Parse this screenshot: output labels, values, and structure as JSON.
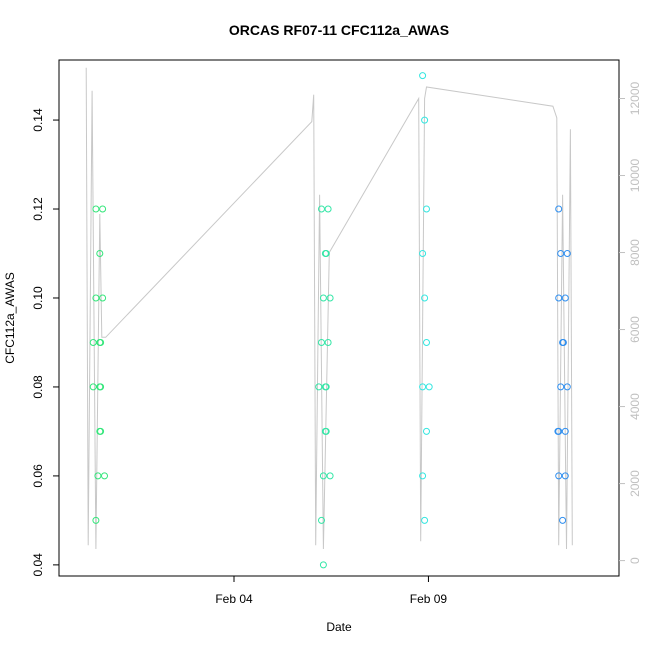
{
  "chart_data": {
    "type": "scatter",
    "title": "ORCAS RF07-11 CFC112a_AWAS",
    "xlabel": "Date",
    "ylabel": "CFC112a_AWAS",
    "x_ticks": [
      "Feb 04",
      "Feb 09"
    ],
    "x_tick_days": [
      4,
      9
    ],
    "xlim_days": [
      -0.5,
      13.9
    ],
    "ylim": [
      0.0375,
      0.1535
    ],
    "y_ticks": [
      0.04,
      0.06,
      0.08,
      0.1,
      0.12,
      0.14
    ],
    "y_tick_labels": [
      "0.04",
      "0.06",
      "0.08",
      "0.10",
      "0.12",
      "0.14"
    ],
    "y2_ticks": [
      0,
      2000,
      4000,
      6000,
      8000,
      10000,
      12000
    ],
    "y2_tick_labels": [
      "0",
      "2000",
      "4000",
      "6000",
      "8000",
      "10000",
      "12000"
    ],
    "y2lim": [
      -400,
      13000
    ],
    "line_color": "#c8c8c8",
    "groups": [
      {
        "color": "#33e67a",
        "x_center": 0.5,
        "values": [
          0.12,
          0.12,
          0.11,
          0.1,
          0.1,
          0.09,
          0.09,
          0.09,
          0.08,
          0.08,
          0.08,
          0.07,
          0.07,
          0.06,
          0.06,
          0.05
        ]
      },
      {
        "color": "#33e6a6",
        "x_center": 6.3,
        "values": [
          0.12,
          0.12,
          0.11,
          0.11,
          0.1,
          0.1,
          0.09,
          0.09,
          0.08,
          0.08,
          0.08,
          0.07,
          0.07,
          0.06,
          0.06,
          0.05,
          0.04
        ]
      },
      {
        "color": "#33e6e0",
        "x_center": 8.9,
        "values": [
          0.15,
          0.14,
          0.12,
          0.11,
          0.1,
          0.09,
          0.08,
          0.08,
          0.07,
          0.06,
          0.05
        ]
      },
      {
        "color": "#2f8ff0",
        "x_center": 12.4,
        "values": [
          0.12,
          0.11,
          0.11,
          0.1,
          0.1,
          0.09,
          0.09,
          0.08,
          0.08,
          0.07,
          0.07,
          0.07,
          0.06,
          0.06,
          0.05
        ]
      }
    ],
    "altitude_line": [
      {
        "day": 0.2,
        "alt": 12800
      },
      {
        "day": 0.25,
        "alt": 400
      },
      {
        "day": 0.35,
        "alt": 12200
      },
      {
        "day": 0.45,
        "alt": 300
      },
      {
        "day": 0.55,
        "alt": 9000
      },
      {
        "day": 0.6,
        "alt": 5800
      },
      {
        "day": 0.7,
        "alt": 5800
      },
      {
        "day": 6.0,
        "alt": 11400
      },
      {
        "day": 6.05,
        "alt": 12100
      },
      {
        "day": 6.1,
        "alt": 400
      },
      {
        "day": 6.2,
        "alt": 9500
      },
      {
        "day": 6.3,
        "alt": 300
      },
      {
        "day": 6.45,
        "alt": 8000
      },
      {
        "day": 8.75,
        "alt": 12000
      },
      {
        "day": 8.8,
        "alt": 500
      },
      {
        "day": 8.9,
        "alt": 12000
      },
      {
        "day": 8.95,
        "alt": 12300
      },
      {
        "day": 12.2,
        "alt": 11800
      },
      {
        "day": 12.3,
        "alt": 11500
      },
      {
        "day": 12.35,
        "alt": 400
      },
      {
        "day": 12.45,
        "alt": 9500
      },
      {
        "day": 12.55,
        "alt": 300
      },
      {
        "day": 12.65,
        "alt": 11200
      },
      {
        "day": 12.7,
        "alt": 400
      }
    ]
  }
}
